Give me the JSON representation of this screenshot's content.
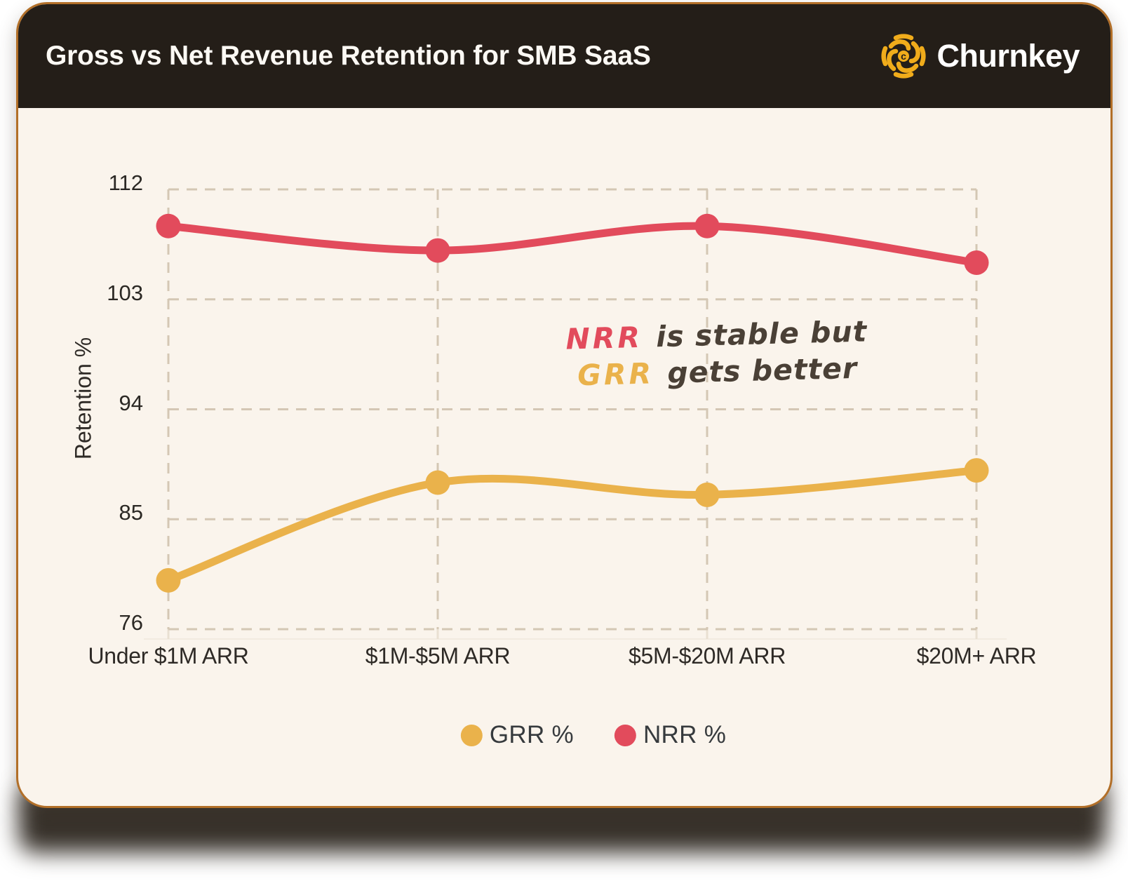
{
  "header": {
    "title": "Gross vs Net Revenue Retention for SMB SaaS",
    "brand": "Churnkey"
  },
  "colors": {
    "grr": "#EAB24B",
    "nrr": "#E24B5C",
    "card_background": "#FAF4EC",
    "header_background": "#241E18",
    "card_border": "#B26F28",
    "gridline": "#D4C7B4",
    "annotation_text": "#4A4036"
  },
  "chart_data": {
    "type": "line",
    "title": "Gross vs Net Revenue Retention for SMB SaaS",
    "categories": [
      "Under $1M ARR",
      "$1M-$5M ARR",
      "$5M-$20M ARR",
      "$20M+ ARR"
    ],
    "series": [
      {
        "name": "GRR %",
        "color": "#EAB24B",
        "values": [
          80,
          88,
          87,
          89
        ]
      },
      {
        "name": "NRR %",
        "color": "#E24B5C",
        "values": [
          109,
          107,
          109,
          106
        ]
      }
    ],
    "xlabel": "",
    "ylabel": "Retention %",
    "yticks": [
      76,
      85,
      94,
      103,
      112
    ],
    "ylim": [
      76,
      112
    ],
    "grid": "dashed",
    "legend_position": "bottom",
    "annotation": {
      "line1_colored": "NRR",
      "line1_rest": " is stable but",
      "line2_colored": "GRR",
      "line2_rest": " gets better"
    }
  }
}
